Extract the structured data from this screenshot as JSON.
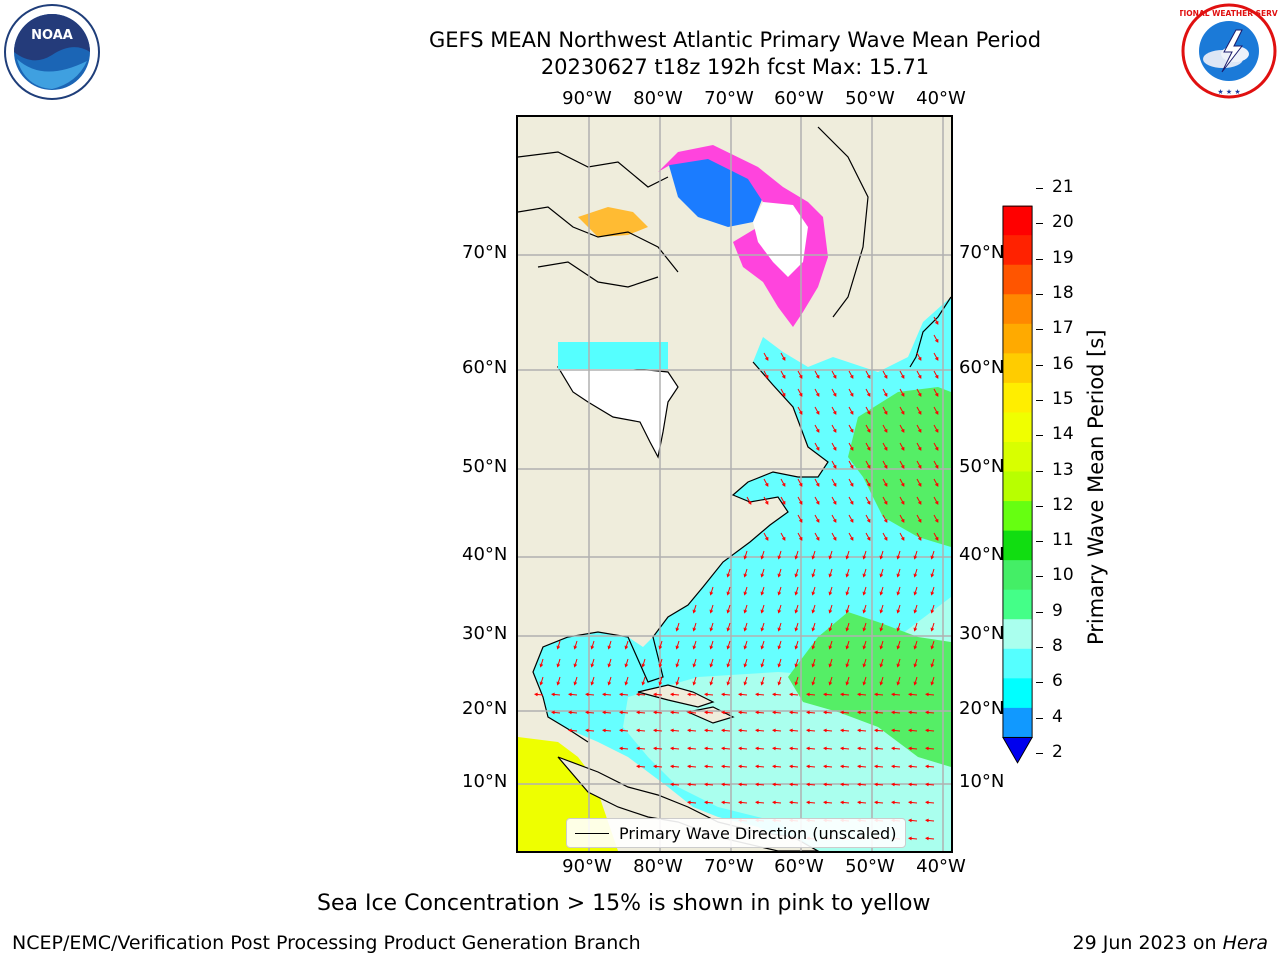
{
  "header": {
    "title_line1": "GEFS MEAN Northwest Atlantic Primary Wave Mean Period",
    "title_line2": "20230627 t18z 192h fcst   Max: 15.71"
  },
  "logos": {
    "left": "NOAA",
    "right": "NATIONAL WEATHER SERVICE"
  },
  "map": {
    "lon_labels": [
      "90°W",
      "80°W",
      "70°W",
      "60°W",
      "50°W",
      "40°W"
    ],
    "lat_labels": [
      "70°N",
      "60°N",
      "50°N",
      "40°N",
      "30°N",
      "20°N",
      "10°N"
    ],
    "legend_label": "Primary Wave Direction (unscaled)"
  },
  "colorbar": {
    "label": "Primary Wave Mean Period [s]",
    "ticks": [
      "21",
      "20",
      "19",
      "18",
      "17",
      "16",
      "15",
      "14",
      "13",
      "12",
      "11",
      "10",
      "9",
      "8",
      "6",
      "4",
      "2"
    ],
    "colors": [
      "#ff0000",
      "#ff2200",
      "#ff5500",
      "#ff8800",
      "#ffaa00",
      "#ffcc00",
      "#ffee00",
      "#f0ff00",
      "#d8ff00",
      "#b8ff00",
      "#66ff11",
      "#11dd11",
      "#44ee66",
      "#44ff88",
      "#aaffee",
      "#55ffff",
      "#00ffff",
      "#1199ff",
      "#0066ff"
    ]
  },
  "footer": {
    "note": "Sea Ice Concentration > 15% is shown in pink to yellow",
    "left": "NCEP/EMC/Verification Post Processing Product Generation Branch",
    "right_date": "29 Jun 2023 on ",
    "right_host": "Hera"
  }
}
